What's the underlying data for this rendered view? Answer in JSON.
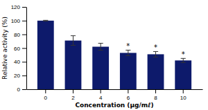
{
  "chart_data": {
    "type": "bar",
    "categories": [
      "0",
      "2",
      "4",
      "6",
      "8",
      "10"
    ],
    "values": [
      100,
      71,
      62,
      53,
      51,
      42
    ],
    "errors": [
      0.5,
      7,
      5,
      4,
      4,
      3
    ],
    "color": "#0d1a6b",
    "xlabel": "Concentration (μg/mℓ)",
    "ylabel": "Relative activity (%)",
    "ylim": [
      0,
      120
    ],
    "yticks": [
      0,
      20,
      40,
      60,
      80,
      100,
      120
    ],
    "annotations": [
      {
        "text": "*",
        "category": "6"
      },
      {
        "text": "*",
        "category": "8"
      },
      {
        "text": "*",
        "category": "10"
      }
    ],
    "grid": false
  }
}
